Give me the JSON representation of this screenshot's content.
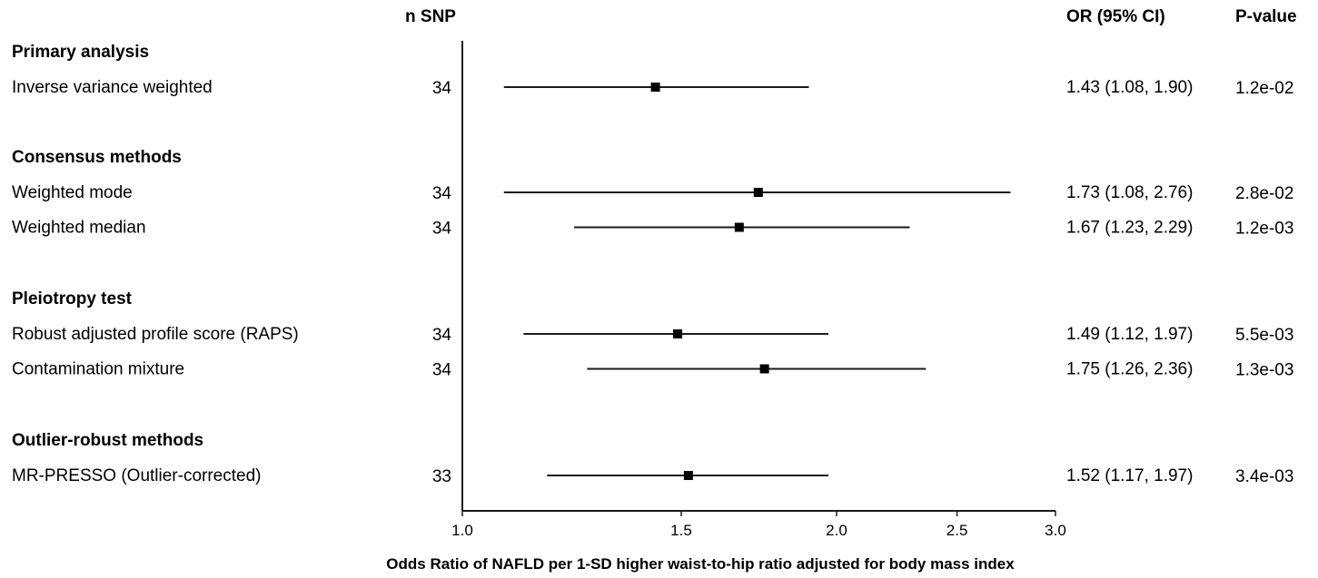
{
  "chart_data": {
    "type": "forest",
    "headers": {
      "n_snp": "n SNP",
      "or_ci": "OR (95% CI)",
      "p_value": "P-value"
    },
    "xlabel": "Odds Ratio of NAFLD per 1-SD higher waist-to-hip ratio adjusted for body mass index",
    "x_scale": "log",
    "xlim": [
      1.0,
      3.0
    ],
    "x_ticks": [
      "1.0",
      "1.5",
      "2.0",
      "2.5",
      "3.0"
    ],
    "groups": [
      {
        "title": "Primary analysis",
        "rows": [
          {
            "label": "Inverse variance weighted",
            "n": "34",
            "or": 1.43,
            "lo": 1.08,
            "hi": 1.9,
            "or_text": "1.43 (1.08, 1.90)",
            "p": "1.2e-02"
          }
        ]
      },
      {
        "title": "Consensus methods",
        "rows": [
          {
            "label": "Weighted mode",
            "n": "34",
            "or": 1.73,
            "lo": 1.08,
            "hi": 2.76,
            "or_text": "1.73 (1.08, 2.76)",
            "p": "2.8e-02"
          },
          {
            "label": "Weighted median",
            "n": "34",
            "or": 1.67,
            "lo": 1.23,
            "hi": 2.29,
            "or_text": "1.67 (1.23, 2.29)",
            "p": "1.2e-03"
          }
        ]
      },
      {
        "title": "Pleiotropy test",
        "rows": [
          {
            "label": "Robust adjusted profile score (RAPS)",
            "n": "34",
            "or": 1.49,
            "lo": 1.12,
            "hi": 1.97,
            "or_text": "1.49 (1.12, 1.97)",
            "p": "5.5e-03"
          },
          {
            "label": "Contamination mixture",
            "n": "34",
            "or": 1.75,
            "lo": 1.26,
            "hi": 2.36,
            "or_text": "1.75 (1.26, 2.36)",
            "p": "1.3e-03"
          }
        ]
      },
      {
        "title": "Outlier-robust methods",
        "rows": [
          {
            "label": "MR-PRESSO (Outlier-corrected)",
            "n": "33",
            "or": 1.52,
            "lo": 1.17,
            "hi": 1.97,
            "or_text": "1.52 (1.17, 1.97)",
            "p": "3.4e-03"
          }
        ]
      }
    ]
  }
}
